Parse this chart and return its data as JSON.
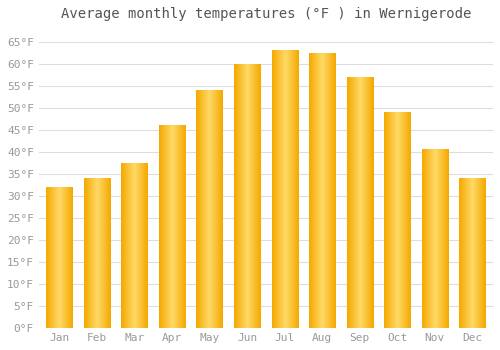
{
  "title": "Average monthly temperatures (°F ) in Wernigerode",
  "months": [
    "Jan",
    "Feb",
    "Mar",
    "Apr",
    "May",
    "Jun",
    "Jul",
    "Aug",
    "Sep",
    "Oct",
    "Nov",
    "Dec"
  ],
  "values": [
    32,
    34,
    37.5,
    46,
    54,
    60,
    63,
    62.5,
    57,
    49,
    40.5,
    34
  ],
  "bar_color_edge": "#F5A800",
  "bar_color_center": "#FFD966",
  "ylim": [
    0,
    68
  ],
  "yticks": [
    0,
    5,
    10,
    15,
    20,
    25,
    30,
    35,
    40,
    45,
    50,
    55,
    60,
    65
  ],
  "ytick_labels": [
    "0°F",
    "5°F",
    "10°F",
    "15°F",
    "20°F",
    "25°F",
    "30°F",
    "35°F",
    "40°F",
    "45°F",
    "50°F",
    "55°F",
    "60°F",
    "65°F"
  ],
  "grid_color": "#dddddd",
  "background_color": "#ffffff",
  "title_fontsize": 10,
  "tick_fontsize": 8,
  "font_family": "monospace",
  "bar_width": 0.7
}
